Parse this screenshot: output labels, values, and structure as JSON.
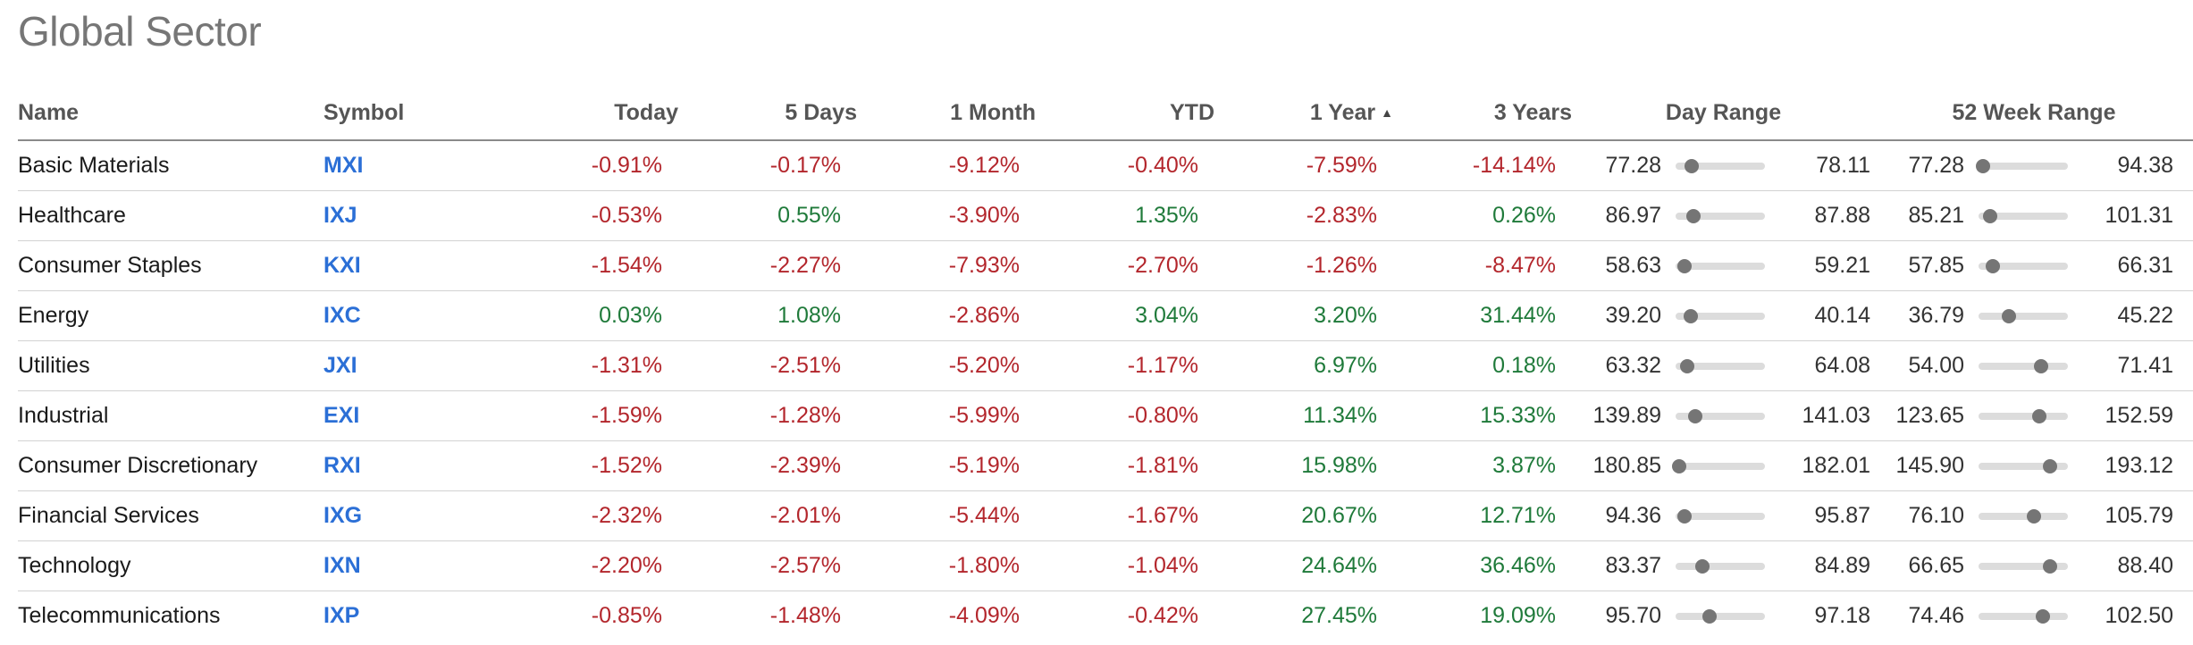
{
  "title": "Global Sector",
  "colors": {
    "negative": "#b3262c",
    "positive": "#1f7a3a",
    "symbol": "#2b6fd6"
  },
  "headers": {
    "name": "Name",
    "symbol": "Symbol",
    "today": "Today",
    "five_days": "5 Days",
    "one_month": "1 Month",
    "ytd": "YTD",
    "one_year": "1 Year",
    "three_years": "3 Years",
    "day_range": "Day Range",
    "week52_range": "52 Week Range"
  },
  "sort": {
    "column": "1 Year",
    "direction": "ascending"
  },
  "rows": [
    {
      "name": "Basic Materials",
      "symbol": "MXI",
      "today": "-0.91%",
      "five_days": "-0.17%",
      "one_month": "-9.12%",
      "ytd": "-0.40%",
      "one_year": "-7.59%",
      "three_years": "-14.14%",
      "day_low": "77.28",
      "day_high": "78.11",
      "day_pos": 0.18,
      "w52_low": "77.28",
      "w52_high": "94.38",
      "w52_pos": 0.05
    },
    {
      "name": "Healthcare",
      "symbol": "IXJ",
      "today": "-0.53%",
      "five_days": "0.55%",
      "one_month": "-3.90%",
      "ytd": "1.35%",
      "one_year": "-2.83%",
      "three_years": "0.26%",
      "day_low": "86.97",
      "day_high": "87.88",
      "day_pos": 0.2,
      "w52_low": "85.21",
      "w52_high": "101.31",
      "w52_pos": 0.13
    },
    {
      "name": "Consumer Staples",
      "symbol": "KXI",
      "today": "-1.54%",
      "five_days": "-2.27%",
      "one_month": "-7.93%",
      "ytd": "-2.70%",
      "one_year": "-1.26%",
      "three_years": "-8.47%",
      "day_low": "58.63",
      "day_high": "59.21",
      "day_pos": 0.1,
      "w52_low": "57.85",
      "w52_high": "66.31",
      "w52_pos": 0.16
    },
    {
      "name": "Energy",
      "symbol": "IXC",
      "today": "0.03%",
      "five_days": "1.08%",
      "one_month": "-2.86%",
      "ytd": "3.04%",
      "one_year": "3.20%",
      "three_years": "31.44%",
      "day_low": "39.20",
      "day_high": "40.14",
      "day_pos": 0.17,
      "w52_low": "36.79",
      "w52_high": "45.22",
      "w52_pos": 0.34
    },
    {
      "name": "Utilities",
      "symbol": "JXI",
      "today": "-1.31%",
      "five_days": "-2.51%",
      "one_month": "-5.20%",
      "ytd": "-1.17%",
      "one_year": "6.97%",
      "three_years": "0.18%",
      "day_low": "63.32",
      "day_high": "64.08",
      "day_pos": 0.13,
      "w52_low": "54.00",
      "w52_high": "71.41",
      "w52_pos": 0.7
    },
    {
      "name": "Industrial",
      "symbol": "EXI",
      "today": "-1.59%",
      "five_days": "-1.28%",
      "one_month": "-5.99%",
      "ytd": "-0.80%",
      "one_year": "11.34%",
      "three_years": "15.33%",
      "day_low": "139.89",
      "day_high": "141.03",
      "day_pos": 0.22,
      "w52_low": "123.65",
      "w52_high": "152.59",
      "w52_pos": 0.68
    },
    {
      "name": "Consumer Discretionary",
      "symbol": "RXI",
      "today": "-1.52%",
      "five_days": "-2.39%",
      "one_month": "-5.19%",
      "ytd": "-1.81%",
      "one_year": "15.98%",
      "three_years": "3.87%",
      "day_low": "180.85",
      "day_high": "182.01",
      "day_pos": 0.04,
      "w52_low": "145.90",
      "w52_high": "193.12",
      "w52_pos": 0.8
    },
    {
      "name": "Financial Services",
      "symbol": "IXG",
      "today": "-2.32%",
      "five_days": "-2.01%",
      "one_month": "-5.44%",
      "ytd": "-1.67%",
      "one_year": "20.67%",
      "three_years": "12.71%",
      "day_low": "94.36",
      "day_high": "95.87",
      "day_pos": 0.1,
      "w52_low": "76.10",
      "w52_high": "105.79",
      "w52_pos": 0.62
    },
    {
      "name": "Technology",
      "symbol": "IXN",
      "today": "-2.20%",
      "five_days": "-2.57%",
      "one_month": "-1.80%",
      "ytd": "-1.04%",
      "one_year": "24.64%",
      "three_years": "36.46%",
      "day_low": "83.37",
      "day_high": "84.89",
      "day_pos": 0.3,
      "w52_low": "66.65",
      "w52_high": "88.40",
      "w52_pos": 0.8
    },
    {
      "name": "Telecommunications",
      "symbol": "IXP",
      "today": "-0.85%",
      "five_days": "-1.48%",
      "one_month": "-4.09%",
      "ytd": "-0.42%",
      "one_year": "27.45%",
      "three_years": "19.09%",
      "day_low": "95.70",
      "day_high": "97.18",
      "day_pos": 0.38,
      "w52_low": "74.46",
      "w52_high": "102.50",
      "w52_pos": 0.72
    }
  ]
}
